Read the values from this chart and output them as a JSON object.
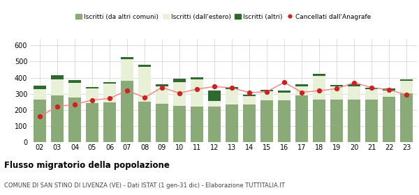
{
  "years": [
    "02",
    "03",
    "04",
    "05",
    "06",
    "07",
    "08",
    "09",
    "10",
    "11",
    "12",
    "13",
    "14",
    "15",
    "16",
    "17",
    "18",
    "19",
    "20",
    "21",
    "22",
    "23"
  ],
  "iscritti_altri_comuni": [
    265,
    290,
    278,
    242,
    248,
    382,
    252,
    238,
    225,
    222,
    220,
    235,
    235,
    260,
    260,
    290,
    265,
    265,
    265,
    265,
    280,
    305
  ],
  "iscritti_estero": [
    65,
    102,
    92,
    92,
    115,
    132,
    215,
    110,
    148,
    170,
    38,
    95,
    53,
    55,
    50,
    55,
    148,
    80,
    80,
    65,
    42,
    75
  ],
  "iscritti_altri": [
    20,
    22,
    15,
    10,
    10,
    14,
    12,
    10,
    20,
    10,
    65,
    12,
    8,
    10,
    10,
    15,
    12,
    10,
    15,
    10,
    12,
    10
  ],
  "cancellati": [
    160,
    222,
    235,
    262,
    272,
    322,
    278,
    340,
    305,
    330,
    345,
    338,
    308,
    313,
    372,
    310,
    320,
    332,
    370,
    340,
    325,
    295
  ],
  "color_altri_comuni": "#8aaa78",
  "color_estero": "#e8f0d8",
  "color_altri": "#2d6a2d",
  "color_cancellati": "#cc2222",
  "color_cancellati_line": "#f08080",
  "title": "Flusso migratorio della popolazione",
  "subtitle": "COMUNE DI SAN STINO DI LIVENZA (VE) - Dati ISTAT (1 gen-31 dic) - Elaborazione TUTTITALIA.IT",
  "legend_labels": [
    "Iscritti (da altri comuni)",
    "Iscritti (dall'estero)",
    "Iscritti (altri)",
    "Cancellati dall'Anagrafe"
  ],
  "ylim": [
    0,
    640
  ],
  "yticks": [
    0,
    100,
    200,
    300,
    400,
    500,
    600
  ],
  "bg_color": "#ffffff",
  "grid_color": "#d0d0d0"
}
